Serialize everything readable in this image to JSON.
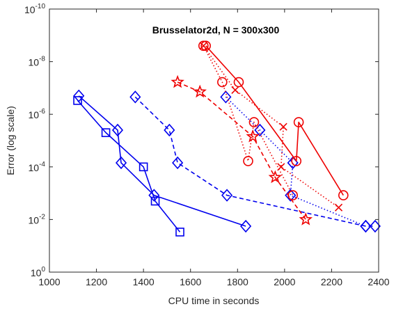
{
  "chart_data": {
    "type": "line",
    "title": "Brusselator2d, N = 300x300",
    "xlabel": "CPU time in seconds",
    "ylabel": "Error (log scale)",
    "xlim": [
      1000,
      2400
    ],
    "ylim_log10": [
      -10,
      0
    ],
    "yscale": "log",
    "xticks": [
      1000,
      1200,
      1400,
      1600,
      1800,
      2000,
      2200,
      2400
    ],
    "xtick_labels": [
      "1000",
      "1200",
      "1400",
      "1600",
      "1800",
      "2000",
      "2200",
      "2400"
    ],
    "ytick_exponents": [
      0,
      -2,
      -4,
      -6,
      -8,
      -10
    ],
    "ytick_base": "10",
    "ytick_sup": [
      "0",
      "-2",
      "-4",
      "-6",
      "-8",
      "-10"
    ],
    "grid": false,
    "colors": {
      "blue": "#0000ee",
      "red": "#ee0000",
      "axis": "#262626"
    },
    "series": [
      {
        "color": "blue",
        "style": "solid",
        "marker": "square",
        "points": [
          [
            1120,
            3e-07
          ],
          [
            1240,
            5e-06
          ],
          [
            1400,
            0.0001
          ],
          [
            1450,
            0.002
          ],
          [
            1555,
            0.03
          ]
        ]
      },
      {
        "color": "blue",
        "style": "solid",
        "marker": "diamond",
        "points": [
          [
            1125,
            2e-07
          ],
          [
            1290,
            4e-06
          ],
          [
            1305,
            7e-05
          ],
          [
            1445,
            0.0012
          ],
          [
            1835,
            0.018
          ]
        ]
      },
      {
        "color": "blue",
        "style": "dashed",
        "marker": "diamond",
        "points": [
          [
            1365,
            2.2e-07
          ],
          [
            1510,
            4e-06
          ],
          [
            1545,
            7e-05
          ],
          [
            1755,
            0.0012
          ],
          [
            2345,
            0.018
          ],
          [
            2385,
            0.018
          ]
        ]
      },
      {
        "color": "blue",
        "style": "dotted",
        "marker": "diamond",
        "points": [
          [
            1750,
            2.2e-07
          ],
          [
            1895,
            4e-06
          ],
          [
            2035,
            7e-05
          ],
          [
            2025,
            0.0012
          ],
          [
            2345,
            0.018
          ]
        ]
      },
      {
        "color": "red",
        "style": "dashed",
        "marker": "star",
        "points": [
          [
            1545,
            6e-08
          ],
          [
            1640,
            1.4e-07
          ],
          [
            1865,
            7e-06
          ],
          [
            1960,
            0.00025
          ],
          [
            2090,
            0.01
          ]
        ]
      },
      {
        "color": "red",
        "style": "dotted",
        "marker": "x",
        "points": [
          [
            1655,
            2.5e-09
          ],
          [
            1790,
            1.2e-07
          ],
          [
            1995,
            3e-06
          ],
          [
            1985,
            0.0001
          ],
          [
            2230,
            0.0035
          ]
        ]
      },
      {
        "color": "red",
        "style": "dotted",
        "marker": "circle",
        "points": [
          [
            1655,
            2.5e-09
          ],
          [
            1735,
            6e-08
          ],
          [
            1845,
            6e-05
          ],
          [
            1870,
            2e-06
          ],
          [
            2035,
            0.0012
          ]
        ]
      },
      {
        "color": "red",
        "style": "solid",
        "marker": "circle",
        "points": [
          [
            1665,
            2.5e-09
          ],
          [
            1805,
            6e-08
          ],
          [
            2050,
            6e-05
          ],
          [
            2060,
            2e-06
          ],
          [
            2250,
            0.0012
          ]
        ]
      }
    ]
  }
}
